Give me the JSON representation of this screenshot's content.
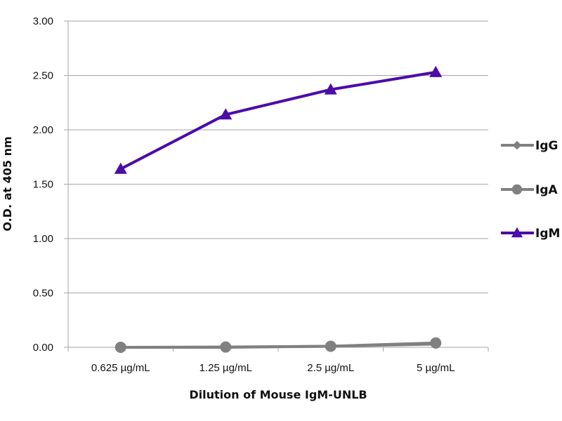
{
  "chart_data": {
    "type": "line",
    "title": "",
    "xlabel": "Dilution of Mouse IgM-UNLB",
    "ylabel": "O.D. at 405 nm",
    "categories": [
      "0.625 µg/mL",
      "1.25 µg/mL",
      "2.5 µg/mL",
      "5 µg/mL"
    ],
    "ylim": [
      0,
      3
    ],
    "yticks": [
      "0.00",
      "0.50",
      "1.00",
      "1.50",
      "2.00",
      "2.50",
      "3.00"
    ],
    "grid": true,
    "legend_position": "right",
    "series": [
      {
        "name": "IgG",
        "marker": "diamond",
        "color": "#808080",
        "values": [
          0.0,
          0.0,
          0.01,
          0.03
        ]
      },
      {
        "name": "IgA",
        "marker": "circle",
        "color": "#808080",
        "values": [
          0.0,
          0.003,
          0.01,
          0.04
        ]
      },
      {
        "name": "IgM",
        "marker": "triangle",
        "color": "#4b0ca8",
        "values": [
          1.64,
          2.14,
          2.37,
          2.53
        ]
      }
    ]
  }
}
